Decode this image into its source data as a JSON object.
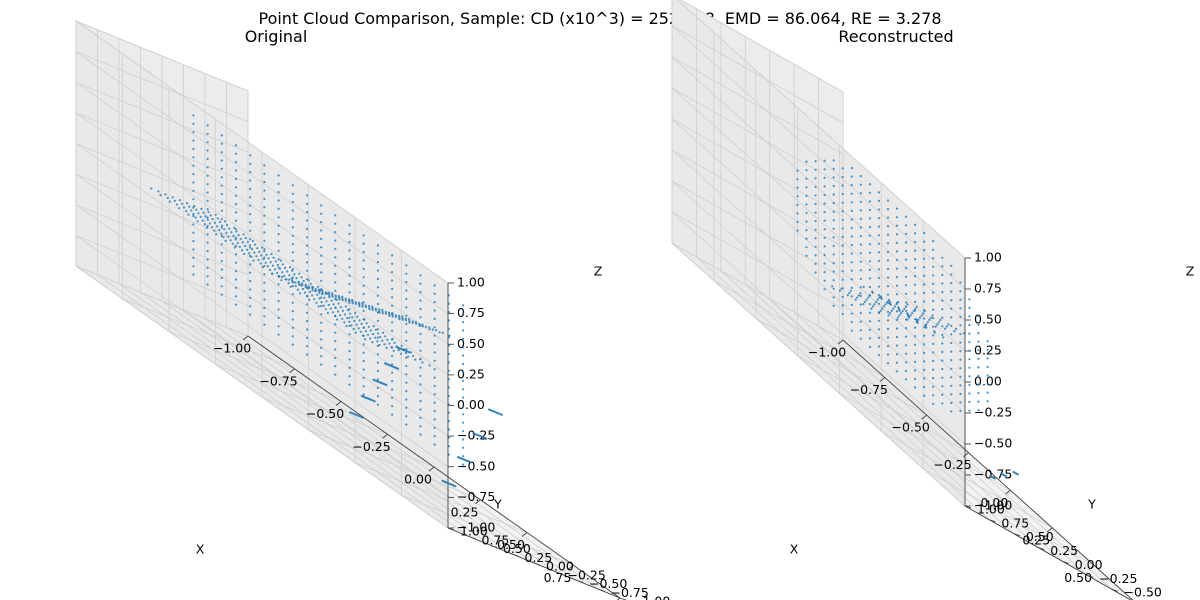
{
  "figure": {
    "title": "Point Cloud Comparison, Sample: CD (x10^3) = 252.258, EMD = 86.064, RE = 3.278"
  },
  "colors": {
    "points": "#1f77b4",
    "pane": "#f2f2f2",
    "grid": "#cfcfcf",
    "axis_line": "#444444"
  },
  "chart_data": [
    {
      "type": "scatter",
      "projection": "3d",
      "title": "Original",
      "xlabel": "X",
      "ylabel": "Y",
      "zlabel": "Z",
      "xlim": [
        -1.0,
        1.0
      ],
      "ylim": [
        -1.0,
        1.0
      ],
      "zlim": [
        -1.0,
        1.0
      ],
      "xticks": [
        "−1.00",
        "−0.75",
        "−0.50",
        "−0.25",
        "0.00",
        "0.25",
        "0.50",
        "0.75",
        "1.00"
      ],
      "yticks": [
        "−1.00",
        "−0.75",
        "−0.50",
        "−0.25",
        "0.00",
        "0.25",
        "0.50",
        "0.75",
        "1.00"
      ],
      "zticks": [
        "−1.00",
        "−0.75",
        "−0.50",
        "−0.25",
        "0.00",
        "0.25",
        "0.50",
        "0.75",
        "1.00"
      ],
      "grid": true,
      "point_groups": [
        {
          "shape": "grid",
          "x": [
            -0.6,
            0.85
          ],
          "y": [
            0.5,
            0.5
          ],
          "z": [
            -0.5,
            0.8
          ],
          "n_u": 20,
          "n_v": 20
        },
        {
          "shape": "grid",
          "x": [
            -0.85,
            0.3
          ],
          "y": [
            -0.3,
            0.45
          ],
          "z": [
            -0.05,
            -0.05
          ],
          "n_u": 24,
          "n_v": 10
        },
        {
          "shape": "grid",
          "x": [
            -0.2,
            0.5
          ],
          "y": [
            -0.1,
            0.45
          ],
          "z": [
            -0.05,
            0.35
          ],
          "n_u": 14,
          "n_v": 8
        },
        {
          "shape": "grid",
          "x": [
            -0.15,
            0.1
          ],
          "y": [
            -0.5,
            -0.35
          ],
          "z": [
            -0.9,
            -0.1
          ],
          "n_u": 5,
          "n_v": 12
        },
        {
          "shape": "grid",
          "x": [
            0.3,
            0.55
          ],
          "y": [
            -0.6,
            -0.45
          ],
          "z": [
            -0.95,
            -0.1
          ],
          "n_u": 4,
          "n_v": 12
        }
      ]
    },
    {
      "type": "scatter",
      "projection": "3d",
      "title": "Reconstructed",
      "xlabel": "X",
      "ylabel": "Y",
      "zlabel": "Z",
      "xlim": [
        -1.0,
        0.9
      ],
      "ylim": [
        -0.85,
        1.15
      ],
      "zlim": [
        -1.0,
        1.0
      ],
      "xticks": [
        "−1.00",
        "−0.75",
        "−0.50",
        "−0.25",
        "0.00",
        "0.25",
        "0.50",
        "0.75"
      ],
      "yticks": [
        "−0.75",
        "−0.50",
        "−0.25",
        "0.00",
        "0.25",
        "0.50",
        "0.75",
        "1.00"
      ],
      "zticks": [
        "−1.00",
        "−0.75",
        "−0.50",
        "−0.25",
        "0.00",
        "0.25",
        "0.50",
        "0.75",
        "1.00"
      ],
      "grid": true,
      "point_groups": [
        {
          "shape": "ellipse",
          "x": [
            -0.55,
            0.8
          ],
          "y": [
            0.6,
            0.6
          ],
          "z": [
            -0.6,
            0.85
          ],
          "n_u": 24,
          "n_v": 22
        },
        {
          "shape": "grid",
          "x": [
            -0.35,
            0.2
          ],
          "y": [
            -0.1,
            0.45
          ],
          "z": [
            -0.35,
            0.1
          ],
          "n_u": 10,
          "n_v": 7
        },
        {
          "shape": "grid",
          "x": [
            -0.45,
            -0.1
          ],
          "y": [
            -0.4,
            -0.1
          ],
          "z": [
            -0.25,
            -0.15
          ],
          "n_u": 7,
          "n_v": 4
        },
        {
          "shape": "grid",
          "x": [
            0.15,
            0.3
          ],
          "y": [
            -0.55,
            -0.5
          ],
          "z": [
            -0.95,
            -0.75
          ],
          "n_u": 3,
          "n_v": 5
        }
      ]
    }
  ]
}
